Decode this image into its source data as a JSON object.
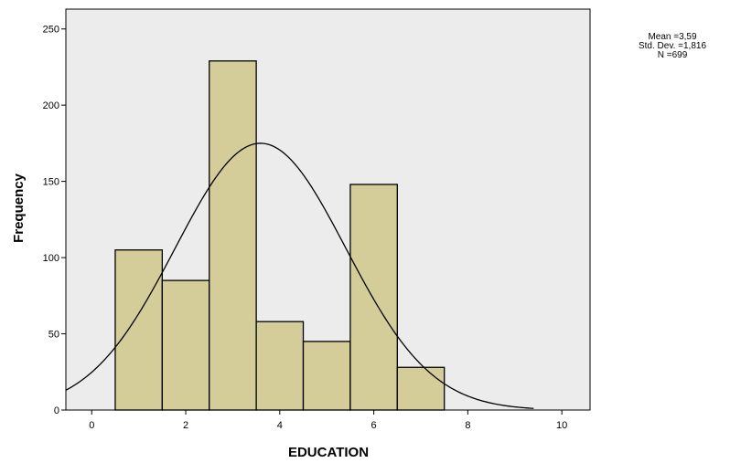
{
  "chart_data": {
    "type": "bar",
    "subtype": "histogram",
    "xlabel": "EDUCATION",
    "ylabel": "Frequency",
    "xlim": [
      -0.55,
      10.6
    ],
    "ylim": [
      0,
      263
    ],
    "x_ticks": [
      0,
      2,
      4,
      6,
      8,
      10
    ],
    "y_ticks": [
      0,
      50,
      100,
      150,
      200,
      250
    ],
    "bin_width": 1,
    "bins": [
      {
        "center": 1,
        "value": 105
      },
      {
        "center": 2,
        "value": 85
      },
      {
        "center": 3,
        "value": 229
      },
      {
        "center": 4,
        "value": 58
      },
      {
        "center": 5,
        "value": 45
      },
      {
        "center": 6,
        "value": 148
      },
      {
        "center": 7,
        "value": 28
      }
    ],
    "normal_curve": {
      "mean": 3.59,
      "std_dev": 1.816,
      "n": 699,
      "peak": 175
    },
    "stats": {
      "mean_text": "Mean =3,59",
      "std_text": "Std. Dev. =1,816",
      "n_text": "N =699"
    },
    "colors": {
      "plot_background": "#ececec",
      "bar_fill": "#d4cd9a",
      "bar_stroke": "#000000",
      "curve": "#000000"
    },
    "grid": false,
    "legend": "none"
  }
}
